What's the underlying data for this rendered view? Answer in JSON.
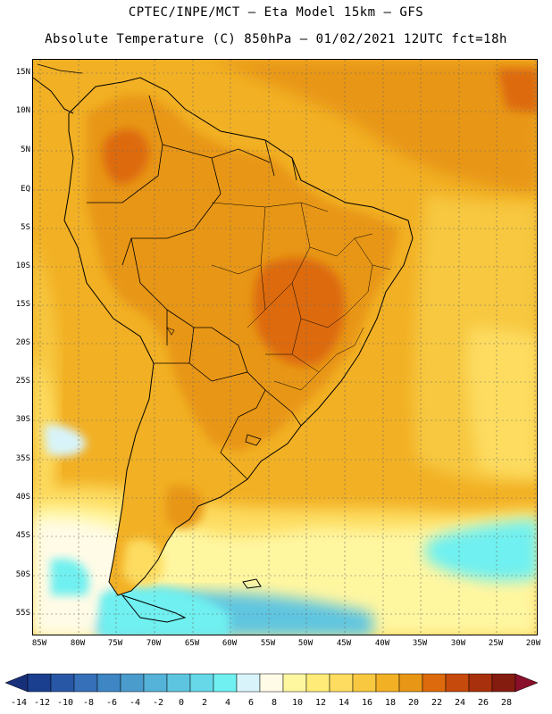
{
  "header": {
    "line1": "CPTEC/INPE/MCT –  Eta Model 15km – GFS",
    "line2": "Absolute Temperature (C) 850hPa – 01/02/2021 12UTC fct=18h"
  },
  "map": {
    "lat_labels": [
      "15N",
      "10N",
      "5N",
      "EQ",
      "5S",
      "10S",
      "15S",
      "20S",
      "25S",
      "30S",
      "35S",
      "40S",
      "45S",
      "50S",
      "55S"
    ],
    "lon_labels": [
      "85W",
      "80W",
      "75W",
      "70W",
      "65W",
      "60W",
      "55W",
      "50W",
      "45W",
      "40W",
      "35W",
      "30W",
      "25W",
      "20W"
    ],
    "grid_lines": true
  },
  "colorbar": {
    "labels": [
      "-14",
      "-12",
      "-10",
      "-8",
      "-6",
      "-4",
      "-2",
      "0",
      "2",
      "4",
      "6",
      "8",
      "10",
      "12",
      "14",
      "16",
      "18",
      "20",
      "22",
      "24",
      "26",
      "28"
    ],
    "colors": [
      "#1b3f8f",
      "#2857a6",
      "#3570b8",
      "#3e86c4",
      "#4a9ccc",
      "#55b2d8",
      "#5ec5e0",
      "#66d8e8",
      "#70f0f0",
      "#d8f4fa",
      "#fffbe6",
      "#fff6a0",
      "#ffec78",
      "#fddc60",
      "#f7c840",
      "#f2b024",
      "#e89616",
      "#dd6a0c",
      "#c54a0c",
      "#a8300c",
      "#851c10"
    ],
    "under_color": "#18307a",
    "over_color": "#8a0f2a"
  }
}
